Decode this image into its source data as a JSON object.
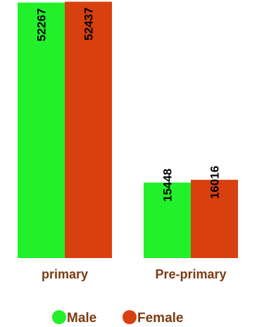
{
  "chart_data": {
    "type": "bar",
    "categories": [
      "primary",
      "Pre-primary"
    ],
    "series": [
      {
        "name": "Male",
        "color": "#22f02b",
        "values": [
          52267,
          15448
        ]
      },
      {
        "name": "Female",
        "color": "#d8400f",
        "values": [
          52437,
          16016
        ]
      }
    ],
    "ylim": [
      0,
      55000
    ],
    "grid": false,
    "legend_placement": "bottom-center",
    "data_labels": "vertical-top"
  }
}
